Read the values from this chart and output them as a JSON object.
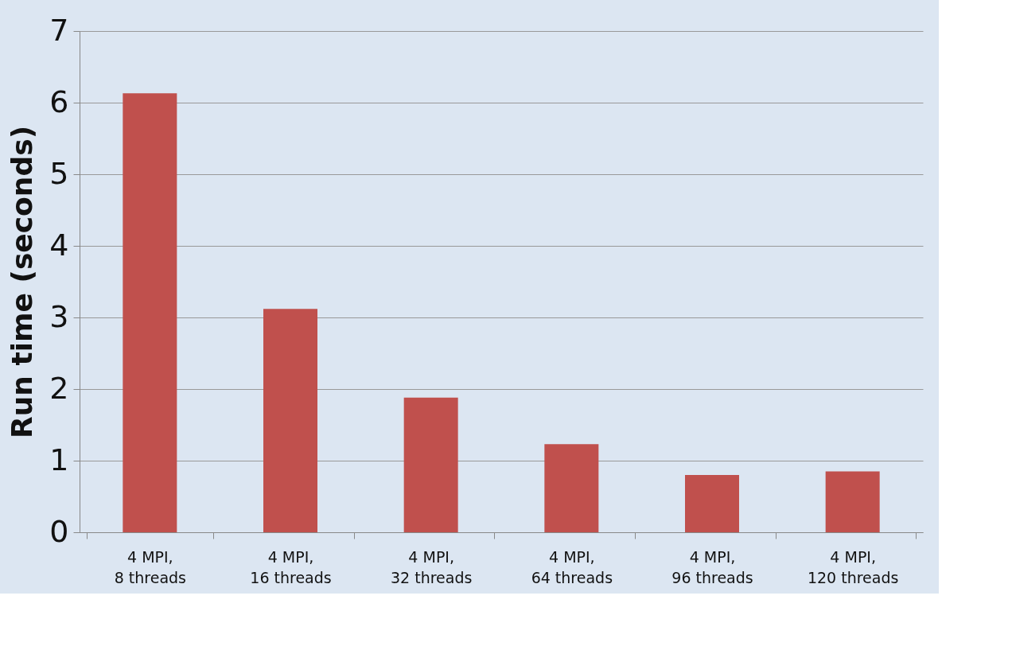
{
  "chart_data": {
    "type": "bar",
    "ylabel": "Run time (seconds)",
    "categories": [
      "4 MPI,\n8 threads",
      "4 MPI,\n16 threads",
      "4 MPI,\n32 threads",
      "4 MPI,\n64 threads",
      "4 MPI,\n96 threads",
      "4 MPI,\n120 threads"
    ],
    "values": [
      6.13,
      3.12,
      1.88,
      1.23,
      0.8,
      0.85
    ],
    "color": "#c0504d",
    "ylim": [
      0,
      7
    ],
    "yticks": [
      0,
      1,
      2,
      3,
      4,
      5,
      6,
      7
    ],
    "grid": "y"
  }
}
